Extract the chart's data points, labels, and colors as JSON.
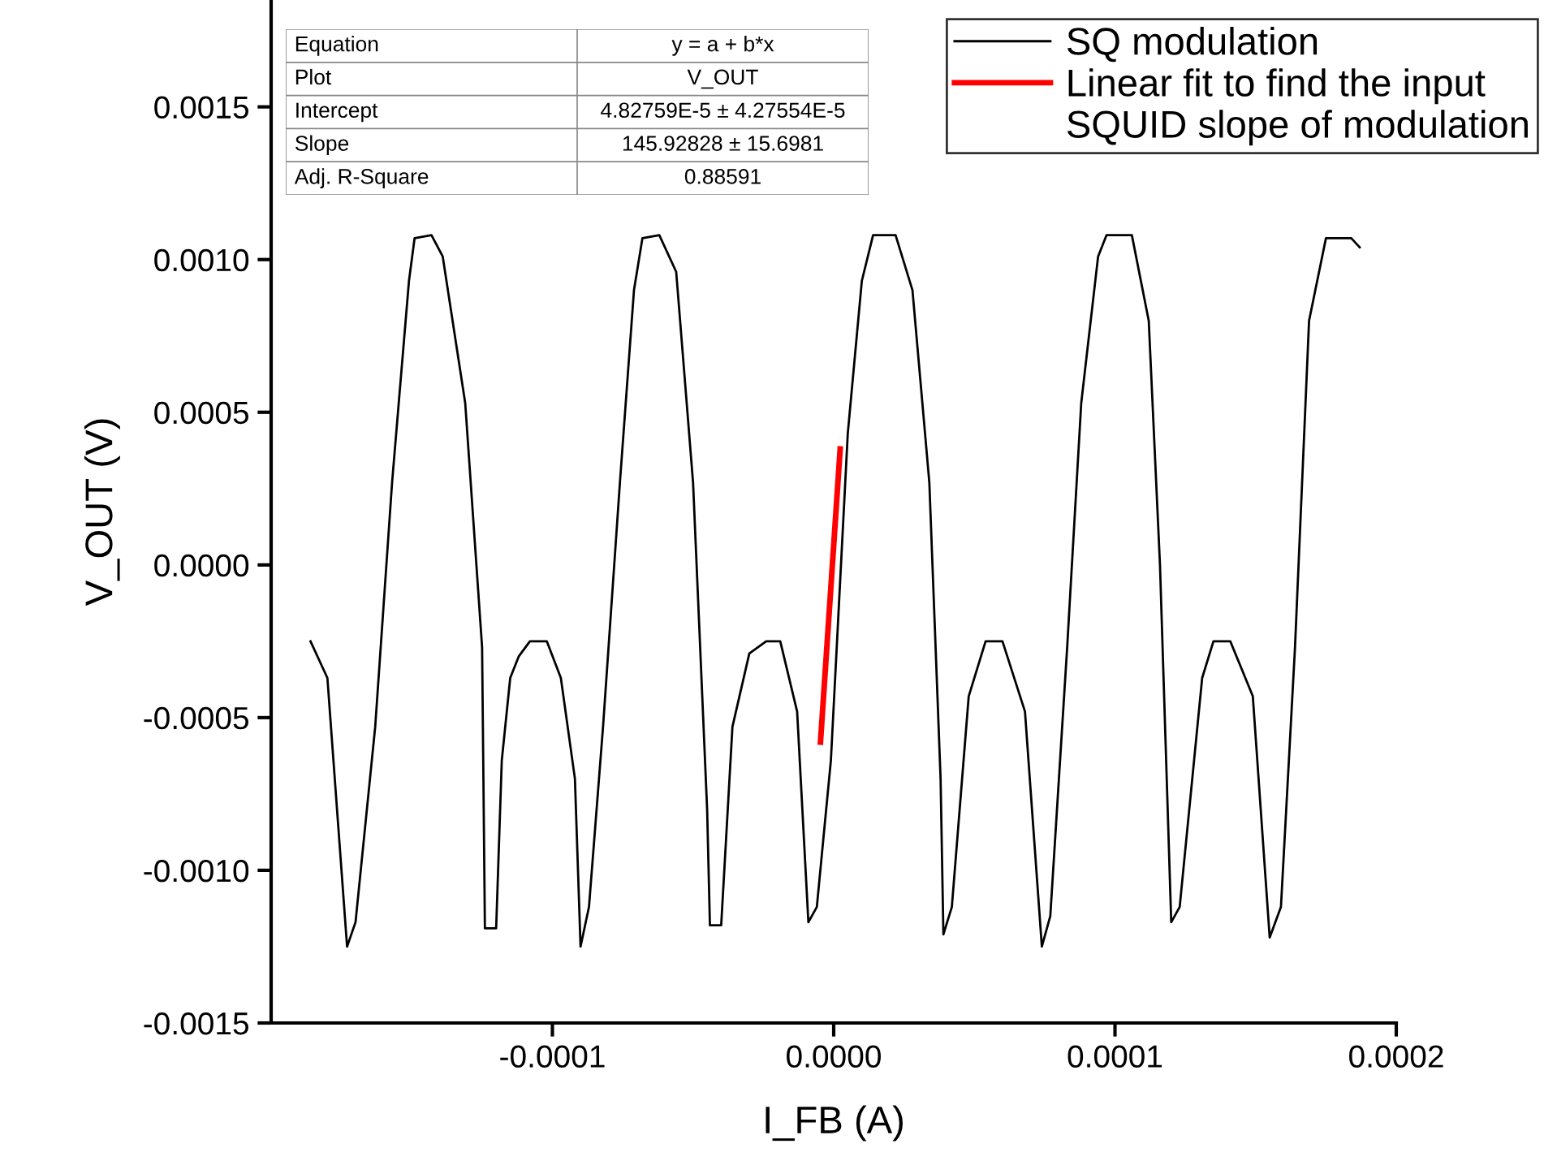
{
  "chart_data": {
    "type": "line",
    "xlabel": "I_FB (A)",
    "ylabel": "V_OUT (V)",
    "xlim": [
      -0.0002,
      0.0002
    ],
    "xticks": [
      {
        "value": -0.0001,
        "label": "-0.0001"
      },
      {
        "value": 0,
        "label": "0.0000"
      },
      {
        "value": 0.0001,
        "label": "0.0001"
      },
      {
        "value": 0.0002,
        "label": "0.0002"
      }
    ],
    "ylim": [
      -0.0015,
      0.00185
    ],
    "yticks": [
      {
        "value": -0.0015,
        "label": "-0.0015"
      },
      {
        "value": -0.001,
        "label": "-0.0010"
      },
      {
        "value": -0.0005,
        "label": "-0.0005"
      },
      {
        "value": 0,
        "label": "0.0000"
      },
      {
        "value": 0.0005,
        "label": "0.0005"
      },
      {
        "value": 0.001,
        "label": "0.0010"
      },
      {
        "value": 0.0015,
        "label": "0.0015"
      }
    ],
    "grid": false,
    "legend": "top right",
    "marker": "none",
    "line_style": "solid",
    "series": [
      {
        "name": "SQ modulation",
        "color": "#000000",
        "x": [
          -0.000186,
          -0.00018,
          -0.000173,
          -0.00017,
          -0.000163,
          -0.000157,
          -0.000151,
          -0.000149,
          -0.000143,
          -0.000139,
          -0.000131,
          -0.000125,
          -0.000124,
          -0.00012,
          -0.000118,
          -0.000115,
          -0.000112,
          -0.000108,
          -0.000102,
          -9.7e-05,
          -9.2e-05,
          -9e-05,
          -8.7e-05,
          -8.2e-05,
          -7.6e-05,
          -7.1e-05,
          -6.8e-05,
          -6.2e-05,
          -5.6e-05,
          -5e-05,
          -4.5e-05,
          -4.4e-05,
          -4e-05,
          -3.6e-05,
          -3e-05,
          -2.4e-05,
          -1.9e-05,
          -1.3e-05,
          -9e-06,
          -6e-06,
          -1e-06,
          5e-06,
          1e-05,
          1.4e-05,
          2.2e-05,
          2.8e-05,
          3.4e-05,
          3.8e-05,
          3.9e-05,
          4.2e-05,
          4.8e-05,
          5.4e-05,
          6e-05,
          6.8e-05,
          7.4e-05,
          7.7e-05,
          8.3e-05,
          8.8e-05,
          9.4e-05,
          9.7e-05,
          0.000106,
          0.000112,
          0.000116,
          0.00012,
          0.000123,
          0.000131,
          0.000135,
          0.000141,
          0.000149,
          0.000155,
          0.000159,
          0.000164,
          0.000169,
          0.000175,
          0.000184,
          0.000187
        ],
        "values": [
          -0.00025,
          -0.00037,
          -0.00125,
          -0.00117,
          -0.00053,
          0.00027,
          0.00093,
          0.00107,
          0.00108,
          0.00101,
          0.00053,
          -0.00027,
          -0.00119,
          -0.00119,
          -0.00064,
          -0.00037,
          -0.0003,
          -0.00025,
          -0.00025,
          -0.00037,
          -0.0007,
          -0.00125,
          -0.00112,
          -0.00053,
          0.00027,
          0.0009,
          0.00107,
          0.00108,
          0.00096,
          0.00027,
          -0.0008,
          -0.00118,
          -0.00118,
          -0.00053,
          -0.00029,
          -0.00025,
          -0.00025,
          -0.00048,
          -0.00117,
          -0.00112,
          -0.00064,
          0.00043,
          0.00093,
          0.00108,
          0.00108,
          0.0009,
          0.00027,
          -0.0007,
          -0.00121,
          -0.00112,
          -0.00043,
          -0.00025,
          -0.00025,
          -0.00048,
          -0.00125,
          -0.00115,
          -0.00027,
          0.00053,
          0.00101,
          0.00108,
          0.00108,
          0.0008,
          0.0,
          -0.00117,
          -0.00112,
          -0.00037,
          -0.00025,
          -0.00025,
          -0.00043,
          -0.00122,
          -0.00112,
          -0.00027,
          0.0008,
          0.00107,
          0.00107,
          0.00104
        ]
      },
      {
        "name": "Linear fit to find the input",
        "color": "#ff0000",
        "x": [
          -4.7e-06,
          2.3e-06
        ],
        "values": [
          -0.00058,
          0.00038
        ]
      }
    ],
    "annotations": [
      "SQUID slope of modulation",
      "Equation",
      "y = a + b*x",
      "Plot",
      "V_OUT",
      "Intercept",
      "4.82759E-5 ± 4.27554E-5",
      "Slope",
      "145.92828 ± 15.6981",
      "Adj. R-Square",
      "0.88591"
    ]
  }
}
